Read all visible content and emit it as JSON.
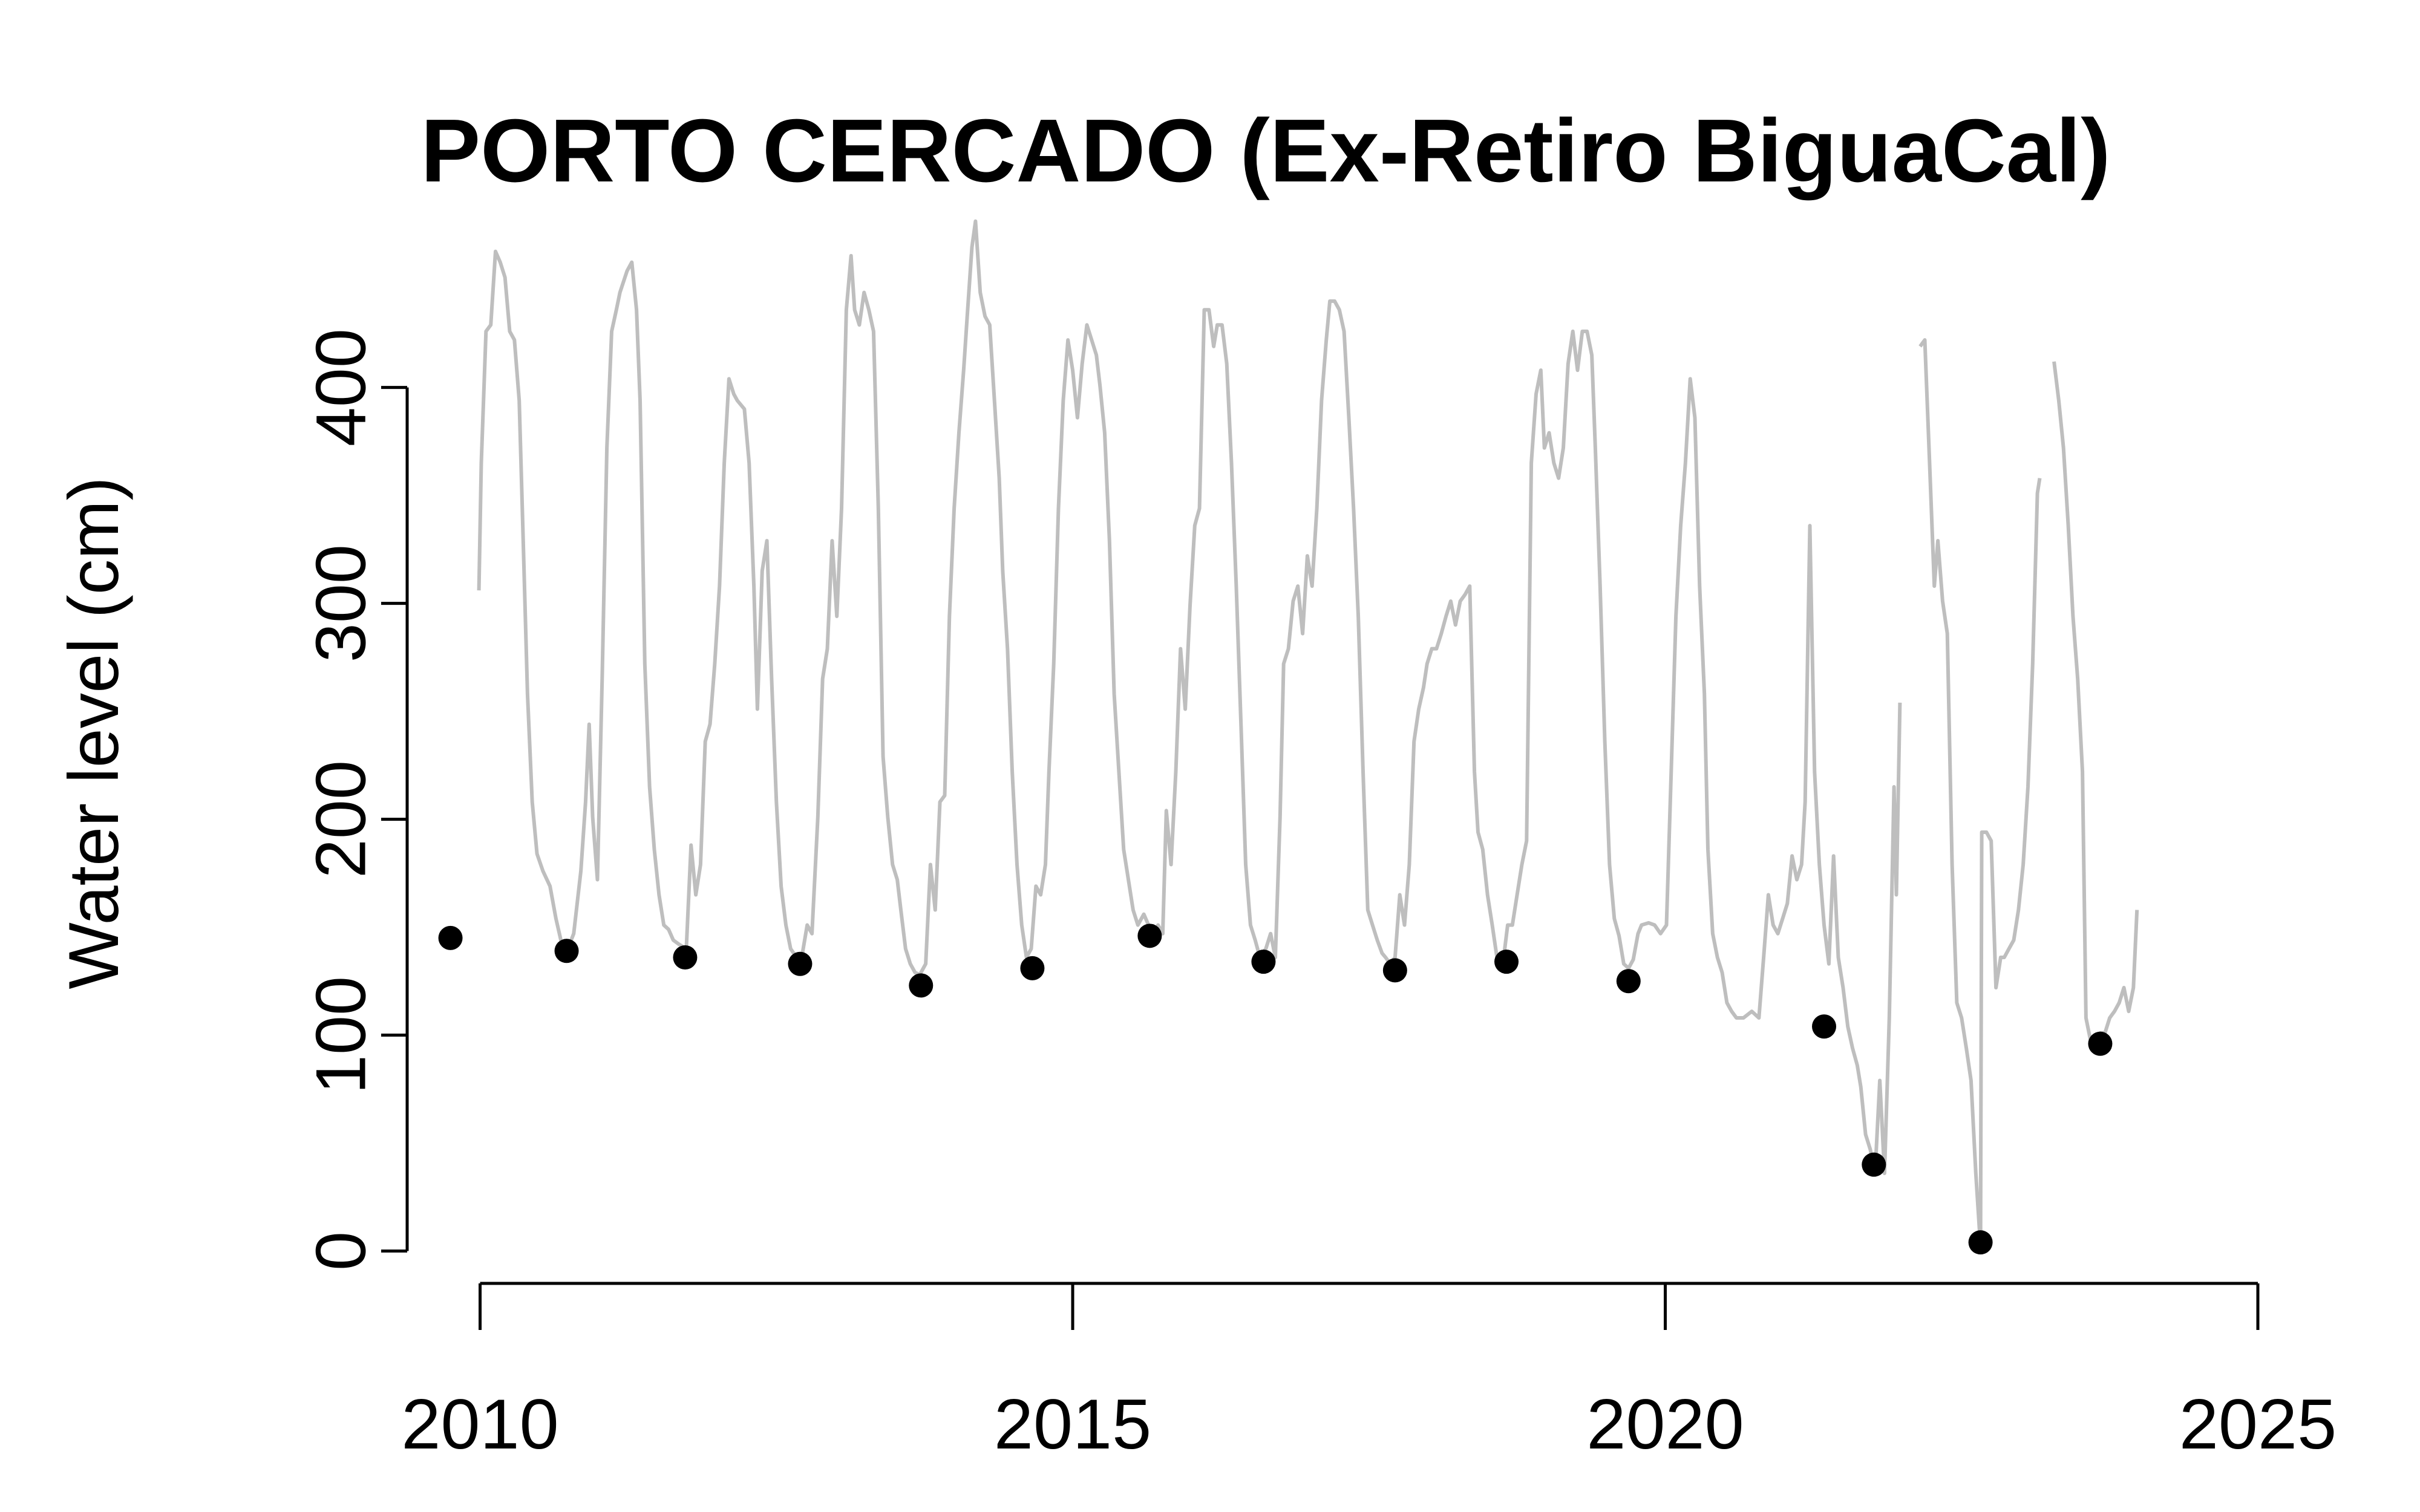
{
  "chart_data": {
    "type": "line",
    "title": "PORTO CERCADO (Ex-Retiro BiguaCal)",
    "ylabel": "Water level (cm)",
    "xlim": [
      2009.4,
      2025
    ],
    "ylim": [
      -15,
      496
    ],
    "xticks": [
      2010,
      2015,
      2020,
      2025
    ],
    "yticks": [
      0,
      100,
      200,
      300,
      400
    ],
    "series": [
      {
        "type": "line",
        "color": "#bebebe",
        "x": [
          2009.99,
          2010.01,
          2010.05,
          2010.09,
          2010.13,
          2010.17,
          2010.21,
          2010.25,
          2010.29,
          2010.33,
          2010.36,
          2010.4,
          2010.44,
          2010.48,
          2010.53,
          2010.59,
          2010.64,
          2010.69,
          2010.74,
          2010.79,
          2010.85,
          2010.89,
          2010.92,
          2010.95,
          2010.99,
          2011.03,
          2011.07,
          2011.11,
          2011.15,
          2011.18,
          2011.24,
          2011.28,
          2011.32,
          2011.35,
          2011.39,
          2011.43,
          2011.47,
          2011.51,
          2011.55,
          2011.59,
          2011.63,
          2011.68,
          2011.74,
          2011.78,
          2011.82,
          2011.86,
          2011.9,
          2011.94,
          2011.98,
          2012.02,
          2012.06,
          2012.1,
          2012.14,
          2012.17,
          2012.23,
          2012.27,
          2012.31,
          2012.34,
          2012.38,
          2012.42,
          2012.46,
          2012.5,
          2012.54,
          2012.58,
          2012.62,
          2012.67,
          2012.72,
          2012.76,
          2012.8,
          2012.85,
          2012.89,
          2012.93,
          2012.97,
          2013.01,
          2013.05,
          2013.09,
          2013.13,
          2013.16,
          2013.2,
          2013.24,
          2013.28,
          2013.32,
          2013.36,
          2013.4,
          2013.44,
          2013.48,
          2013.52,
          2013.55,
          2013.59,
          2013.63,
          2013.67,
          2013.71,
          2013.76,
          2013.8,
          2013.84,
          2013.88,
          2013.92,
          2013.96,
          2014.0,
          2014.04,
          2014.08,
          2014.11,
          2014.15,
          2014.18,
          2014.22,
          2014.26,
          2014.3,
          2014.34,
          2014.38,
          2014.41,
          2014.45,
          2014.49,
          2014.53,
          2014.57,
          2014.61,
          2014.65,
          2014.69,
          2014.73,
          2014.77,
          2014.8,
          2014.84,
          2014.88,
          2014.92,
          2014.96,
          2015.0,
          2015.04,
          2015.08,
          2015.12,
          2015.16,
          2015.2,
          2015.23,
          2015.27,
          2015.31,
          2015.35,
          2015.39,
          2015.43,
          2015.47,
          2015.51,
          2015.55,
          2015.6,
          2015.64,
          2015.68,
          2015.72,
          2015.76,
          2015.79,
          2015.83,
          2015.87,
          2015.91,
          2015.95,
          2015.99,
          2016.03,
          2016.07,
          2016.11,
          2016.15,
          2016.19,
          2016.22,
          2016.26,
          2016.3,
          2016.34,
          2016.38,
          2016.42,
          2016.46,
          2016.5,
          2016.54,
          2016.58,
          2016.63,
          2016.67,
          2016.71,
          2016.75,
          2016.78,
          2016.82,
          2016.86,
          2016.9,
          2016.94,
          2016.98,
          2017.02,
          2017.06,
          2017.1,
          2017.14,
          2017.17,
          2017.21,
          2017.25,
          2017.29,
          2017.33,
          2017.37,
          2017.41,
          2017.45,
          2017.49,
          2017.53,
          2017.57,
          2017.61,
          2017.64,
          2017.68,
          2017.72,
          2017.76,
          2017.8,
          2017.84,
          2017.88,
          2017.92,
          2017.96,
          2017.99,
          2018.03,
          2018.07,
          2018.11,
          2018.15,
          2018.19,
          2018.23,
          2018.27,
          2018.31,
          2018.35,
          2018.39,
          2018.42,
          2018.46,
          2018.5,
          2018.54,
          2018.58,
          2018.63,
          2018.67,
          2018.71,
          2018.75,
          2018.79,
          2018.83,
          2018.87,
          2018.91,
          2018.95,
          2018.98,
          2019.02,
          2019.06,
          2019.1,
          2019.14,
          2019.18,
          2019.22,
          2019.26,
          2019.3,
          2019.34,
          2019.38,
          2019.41,
          2019.45,
          2019.49,
          2019.53,
          2019.57,
          2019.61,
          2019.65,
          2019.69,
          2019.73,
          2019.77,
          2019.8,
          2019.86,
          2019.91,
          2019.96,
          2020.01,
          2020.05,
          2020.09,
          2020.13,
          2020.17,
          2020.21,
          2020.25,
          2020.29,
          2020.33,
          2020.36,
          2020.4,
          2020.44,
          2020.48,
          2020.52,
          2020.56,
          2020.6,
          2020.66,
          2020.73,
          2020.79,
          2020.83,
          2020.87,
          2020.91,
          2020.95,
          2020.99,
          2021.03,
          2021.07,
          2021.11,
          2021.15,
          2021.18,
          2021.22,
          2021.26,
          2021.3,
          2021.34,
          2021.38,
          2021.42,
          2021.46,
          2021.5,
          2021.54,
          2021.58,
          2021.62,
          2021.65,
          2021.69,
          2021.73,
          2021.77,
          2021.81,
          2021.85,
          2021.89,
          2021.93,
          2021.95,
          2021.98,
          2022.06,
          2022.15,
          2022.19,
          2022.23,
          2022.27,
          2022.3,
          2022.34,
          2022.38,
          2022.42,
          2022.46,
          2022.5,
          2022.54,
          2022.58,
          2022.62,
          2022.66,
          2022.67,
          2022.71,
          2022.75,
          2022.79,
          2022.83,
          2022.86,
          2022.9,
          2022.94,
          2022.98,
          2023.02,
          2023.06,
          2023.1,
          2023.14,
          2023.16,
          2023.22,
          2023.28,
          2023.32,
          2023.36,
          2023.4,
          2023.44,
          2023.48,
          2023.52,
          2023.55,
          2023.59,
          2023.63,
          2023.67,
          2023.71,
          2023.75,
          2023.79,
          2023.83,
          2023.87,
          2023.91,
          2023.95,
          2023.98
        ],
        "values": [
          306,
          365,
          426,
          429,
          463,
          458,
          451,
          426,
          422,
          394,
          336,
          258,
          208,
          184,
          176,
          169,
          154,
          142,
          140,
          147,
          176,
          208,
          244,
          201,
          172,
          265,
          372,
          426,
          436,
          444,
          454,
          458,
          436,
          394,
          272,
          215,
          186,
          165,
          151,
          149,
          144,
          142,
          140,
          188,
          165,
          179,
          236,
          244,
          272,
          308,
          365,
          404,
          397,
          394,
          390,
          365,
          308,
          251,
          315,
          329,
          265,
          208,
          169,
          151,
          140,
          136,
          138,
          151,
          147,
          201,
          265,
          279,
          329,
          294,
          344,
          436,
          461,
          436,
          429,
          444,
          436,
          426,
          344,
          229,
          201,
          179,
          172,
          158,
          140,
          133,
          129,
          128,
          133,
          179,
          158,
          208,
          211,
          294,
          344,
          379,
          408,
          433,
          465,
          477,
          444,
          433,
          429,
          394,
          358,
          315,
          279,
          222,
          179,
          151,
          136,
          140,
          169,
          165,
          179,
          222,
          272,
          344,
          394,
          422,
          408,
          386,
          411,
          429,
          422,
          415,
          401,
          379,
          329,
          258,
          222,
          186,
          172,
          158,
          151,
          156,
          151,
          147,
          151,
          147,
          204,
          179,
          222,
          279,
          251,
          299,
          336,
          344,
          436,
          436,
          419,
          429,
          429,
          411,
          365,
          308,
          244,
          179,
          151,
          144,
          136,
          140,
          147,
          136,
          201,
          272,
          279,
          301,
          308,
          286,
          322,
          308,
          344,
          394,
          422,
          440,
          440,
          436,
          426,
          386,
          344,
          294,
          222,
          158,
          151,
          144,
          138,
          136,
          133,
          136,
          165,
          151,
          179,
          236,
          251,
          261,
          272,
          279,
          279,
          286,
          294,
          301,
          290,
          301,
          304,
          308,
          222,
          194,
          186,
          165,
          151,
          136,
          133,
          151,
          151,
          165,
          179,
          190,
          365,
          397,
          408,
          372,
          379,
          365,
          358,
          372,
          411,
          426,
          408,
          426,
          426,
          415,
          372,
          308,
          236,
          179,
          154,
          146,
          133,
          131,
          135,
          147,
          151,
          152,
          151,
          147,
          151,
          222,
          294,
          336,
          365,
          404,
          386,
          308,
          258,
          186,
          147,
          136,
          129,
          115,
          111,
          108,
          108,
          111,
          108,
          136,
          165,
          151,
          147,
          154,
          161,
          183,
          172,
          179,
          208,
          336,
          222,
          179,
          151,
          133,
          183,
          136,
          122,
          104,
          94,
          86,
          76,
          54,
          47,
          36,
          79,
          36,
          108,
          215,
          165,
          254,
          null,
          419,
          422,
          365,
          308,
          329,
          301,
          286,
          179,
          115,
          108,
          94,
          79,
          36,
          2,
          194,
          194,
          190,
          122,
          136,
          136,
          140,
          144,
          158,
          179,
          215,
          272,
          351,
          358,
          null,
          412,
          394,
          372,
          336,
          294,
          265,
          222,
          108,
          97,
          94,
          101,
          101,
          108,
          111,
          115,
          122,
          111,
          122,
          158
        ]
      },
      {
        "type": "scatter",
        "color": "#000000",
        "x": [
          2009.75,
          2010.73,
          2011.73,
          2012.7,
          2013.72,
          2014.66,
          2015.65,
          2016.61,
          2017.72,
          2018.66,
          2019.69,
          2021.34,
          2021.76,
          2022.66,
          2023.67
        ],
        "values": [
          145,
          139,
          136,
          133,
          123,
          131,
          146,
          134,
          130,
          134,
          125,
          104,
          40,
          4,
          96
        ]
      }
    ]
  }
}
